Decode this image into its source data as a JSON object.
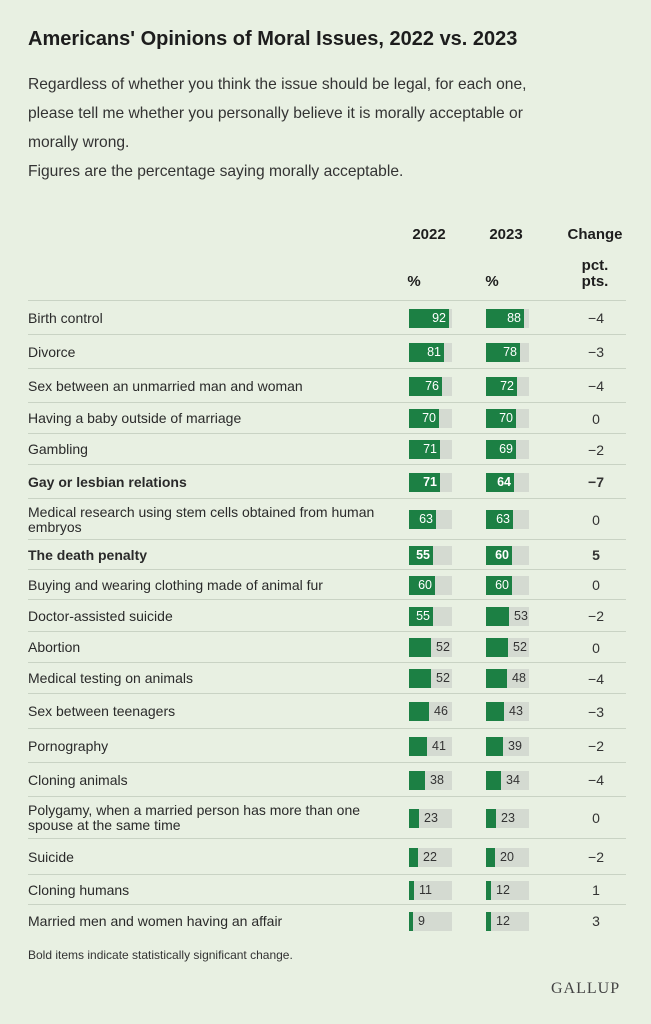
{
  "title": "Americans' Opinions of Moral Issues, 2022 vs. 2023",
  "subtitle_lines": [
    "Regardless of whether you think the issue should be legal, for each one,",
    "please tell me whether you personally believe it is morally acceptable or",
    "morally wrong.",
    "Figures are the percentage saying morally acceptable."
  ],
  "columns": {
    "y2022": "2022",
    "y2023": "2023",
    "change": "Change",
    "unit_2022": "%",
    "unit_2023": "%",
    "change_unit_1": "pct.",
    "change_unit_2": "pts."
  },
  "footnote": "Bold items indicate statistically significant change.",
  "logo": "GALLUP",
  "colors": {
    "bar": "#1c8044",
    "track": "#d4dad1",
    "background": "#e8f0e2"
  },
  "chart_data": {
    "type": "bar",
    "ylim": [
      0,
      100
    ],
    "categories": [
      "Birth control",
      "Divorce",
      "Sex between an unmarried man and woman",
      "Having a baby outside of marriage",
      "Gambling",
      "Gay or lesbian relations",
      "Medical research using stem cells obtained from human embryos",
      "The death penalty",
      "Buying and wearing clothing made of animal fur",
      "Doctor-assisted suicide",
      "Abortion",
      "Medical testing on animals",
      "Sex between teenagers",
      "Pornography",
      "Cloning animals",
      "Polygamy, when a married person has more than one spouse at the same time",
      "Suicide",
      "Cloning humans",
      "Married men and women having an affair"
    ],
    "series": [
      {
        "name": "2022",
        "values": [
          92,
          81,
          76,
          70,
          71,
          71,
          63,
          55,
          60,
          55,
          52,
          52,
          46,
          41,
          38,
          23,
          22,
          11,
          9
        ]
      },
      {
        "name": "2023",
        "values": [
          88,
          78,
          72,
          70,
          69,
          64,
          63,
          60,
          60,
          53,
          52,
          48,
          43,
          39,
          34,
          23,
          20,
          12,
          12
        ]
      }
    ],
    "change": [
      "−4",
      "−3",
      "−4",
      "0",
      "−2",
      "−7",
      "0",
      "5",
      "0",
      "−2",
      "0",
      "−4",
      "−3",
      "−2",
      "−4",
      "0",
      "−2",
      "1",
      "3"
    ],
    "bold": [
      false,
      false,
      false,
      false,
      false,
      true,
      false,
      true,
      false,
      false,
      false,
      false,
      false,
      false,
      false,
      false,
      false,
      false,
      false
    ]
  }
}
